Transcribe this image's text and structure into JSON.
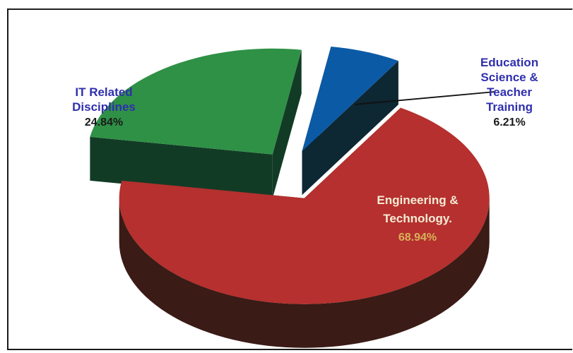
{
  "chart_data": {
    "type": "pie",
    "title": "",
    "style": "3d-exploded",
    "series": [
      {
        "name": "",
        "slices": [
          {
            "label_lines": [
              "Education",
              "Science &",
              "Teacher",
              "Training"
            ],
            "value_label": "6.21%",
            "value": 6.21,
            "color": "#0b5aa6",
            "side_color": "#0d2733",
            "label_color": "#2f2fae",
            "value_color": "#1a1a1a"
          },
          {
            "label_lines": [
              "Engineering &",
              "Technology."
            ],
            "value_label": "68.94%",
            "value": 68.94,
            "color": "#b5302e",
            "side_color": "#3a1b16",
            "label_color": "#f6ecd6",
            "value_color": "#d8b25a"
          },
          {
            "label_lines": [
              "IT Related",
              "Disciplines"
            ],
            "value_label": "24.84%",
            "value": 24.84,
            "color": "#2f9146",
            "side_color": "#123b26",
            "label_color": "#2f2fae",
            "value_color": "#1a1a1a"
          }
        ]
      }
    ]
  }
}
